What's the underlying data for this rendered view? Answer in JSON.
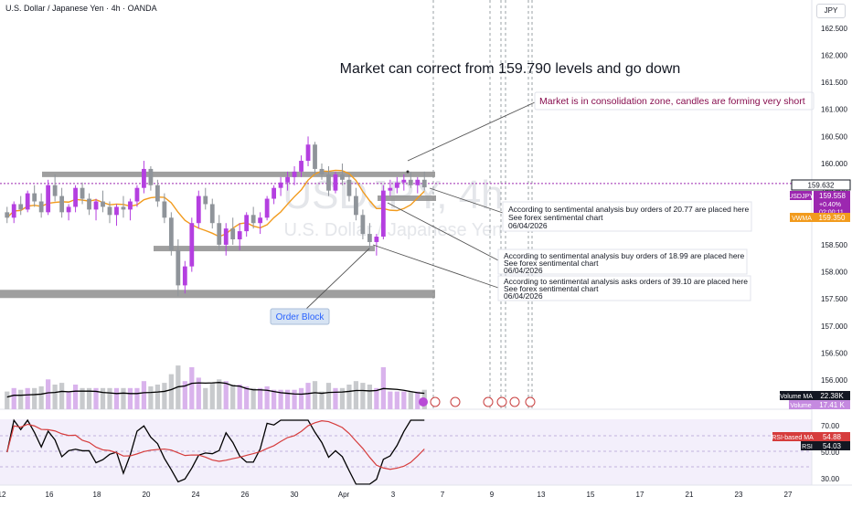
{
  "header": {
    "title": "U.S. Dollar / Japanese Yen · 4h · OANDA",
    "currency": "JPY"
  },
  "watermark": {
    "symbol": "USDJPY, 4h",
    "name": "U.S. Dollar / Japanese Yen"
  },
  "annotations": {
    "headline": "Market can correct from 159.790 levels and go down",
    "consolidation": "Market is in consolidation zone, candles are forming very short",
    "order_block": "Order Block",
    "notes": [
      {
        "line1": "According to sentimental analysis buy orders of 20.77 are placed here",
        "line2": "See forex sentimental chart",
        "line3": "06/04/2026"
      },
      {
        "line1": "According to sentimental analysis buy orders of 18.99 are placed here",
        "line2": "See forex sentimental chart",
        "line3": "06/04/2026"
      },
      {
        "line1": "According to sentimental analysis asks orders of 39.10 are placed here",
        "line2": "See forex sentimental chart",
        "line3": "06/04/2026"
      }
    ]
  },
  "price_badges": {
    "last": "159.632",
    "symbol": "USDJPY",
    "current": "159.558",
    "change": "+0.40%",
    "countdown": "02:00:11",
    "vwma_label": "VWMA",
    "vwma_value": "159.350",
    "volume_ma_label": "Volume MA",
    "volume_ma_value": "22.38K",
    "volume_label": "Volume",
    "volume_value": "17.41 K",
    "rsi_ma_label": "RSI-based MA",
    "rsi_ma_value": "54.88",
    "rsi_label": "RSI",
    "rsi_value": "54.03"
  },
  "chart_data": {
    "type": "candlestick",
    "price_axis": {
      "ticks": [
        "162.500",
        "162.000",
        "161.500",
        "161.000",
        "160.500",
        "160.000",
        "159.500",
        "159.000",
        "158.500",
        "158.000",
        "157.500",
        "157.000",
        "156.500",
        "156.000"
      ],
      "range": [
        155.85,
        162.75
      ]
    },
    "rsi_axis": {
      "ticks": [
        "70.00",
        "50.00",
        "30.00"
      ],
      "range": [
        25,
        75
      ],
      "band": [
        30,
        70
      ]
    },
    "x_axis": {
      "ticks": [
        "12",
        "16",
        "18",
        "20",
        "24",
        "26",
        "30",
        "Apr",
        "3",
        "7",
        "9",
        "13",
        "15",
        "17",
        "21",
        "23",
        "27"
      ]
    },
    "levels": {
      "resistance_zone": 159.8,
      "support_zone": 158.43,
      "order_block": 157.6,
      "last_price": 159.632
    },
    "candles": [
      [
        159.1,
        159.2,
        158.9,
        159.0
      ],
      [
        159.0,
        159.3,
        158.9,
        159.25
      ],
      [
        159.25,
        159.4,
        159.05,
        159.15
      ],
      [
        159.15,
        159.5,
        159.1,
        159.45
      ],
      [
        159.45,
        159.6,
        159.2,
        159.3
      ],
      [
        159.3,
        159.45,
        159.0,
        159.1
      ],
      [
        159.1,
        159.7,
        159.05,
        159.6
      ],
      [
        159.6,
        159.8,
        159.3,
        159.4
      ],
      [
        159.4,
        159.55,
        159.0,
        159.1
      ],
      [
        159.1,
        159.25,
        158.95,
        159.2
      ],
      [
        159.2,
        159.6,
        159.1,
        159.55
      ],
      [
        159.55,
        159.65,
        159.25,
        159.35
      ],
      [
        159.35,
        159.45,
        159.05,
        159.15
      ],
      [
        159.15,
        159.35,
        158.95,
        159.3
      ],
      [
        159.3,
        159.5,
        159.1,
        159.2
      ],
      [
        159.2,
        159.3,
        158.9,
        159.05
      ],
      [
        159.05,
        159.25,
        158.85,
        159.2
      ],
      [
        159.2,
        159.4,
        159.0,
        159.15
      ],
      [
        159.15,
        159.35,
        158.95,
        159.3
      ],
      [
        159.3,
        159.6,
        159.2,
        159.55
      ],
      [
        159.55,
        160.05,
        159.45,
        159.9
      ],
      [
        159.9,
        159.95,
        159.5,
        159.6
      ],
      [
        159.6,
        159.7,
        159.2,
        159.3
      ],
      [
        159.3,
        159.45,
        158.9,
        159.0
      ],
      [
        159.0,
        159.1,
        158.3,
        158.4
      ],
      [
        158.4,
        158.6,
        157.55,
        157.75
      ],
      [
        157.75,
        158.2,
        157.6,
        158.1
      ],
      [
        158.1,
        159.0,
        158.0,
        158.9
      ],
      [
        158.9,
        159.5,
        158.8,
        159.4
      ],
      [
        159.4,
        159.55,
        159.15,
        159.25
      ],
      [
        159.25,
        159.35,
        158.8,
        158.9
      ],
      [
        158.9,
        159.05,
        158.4,
        158.5
      ],
      [
        158.5,
        158.9,
        158.3,
        158.8
      ],
      [
        158.8,
        159.0,
        158.5,
        158.6
      ],
      [
        158.6,
        158.9,
        158.4,
        158.75
      ],
      [
        158.75,
        159.1,
        158.65,
        159.05
      ],
      [
        159.05,
        159.2,
        158.8,
        158.9
      ],
      [
        158.9,
        159.1,
        158.7,
        159.0
      ],
      [
        159.0,
        159.4,
        158.95,
        159.35
      ],
      [
        159.35,
        159.6,
        159.25,
        159.55
      ],
      [
        159.55,
        159.75,
        159.4,
        159.65
      ],
      [
        159.65,
        159.85,
        159.5,
        159.75
      ],
      [
        159.75,
        159.95,
        159.6,
        159.85
      ],
      [
        159.85,
        160.15,
        159.75,
        160.05
      ],
      [
        160.05,
        160.5,
        159.95,
        160.35
      ],
      [
        160.35,
        160.4,
        159.8,
        159.9
      ],
      [
        159.9,
        160.0,
        159.7,
        159.8
      ],
      [
        159.8,
        159.95,
        159.4,
        159.5
      ],
      [
        159.5,
        159.85,
        159.45,
        159.8
      ],
      [
        159.8,
        160.0,
        159.6,
        159.7
      ],
      [
        159.7,
        159.8,
        159.3,
        159.4
      ],
      [
        159.4,
        159.55,
        158.95,
        159.05
      ],
      [
        159.05,
        159.15,
        158.6,
        158.7
      ],
      [
        158.7,
        158.9,
        158.4,
        158.55
      ],
      [
        158.55,
        158.7,
        158.3,
        158.65
      ],
      [
        158.65,
        159.6,
        158.6,
        159.5
      ],
      [
        159.5,
        159.7,
        159.4,
        159.55
      ],
      [
        159.55,
        159.75,
        159.45,
        159.65
      ],
      [
        159.65,
        159.8,
        159.5,
        159.7
      ],
      [
        159.7,
        159.85,
        159.55,
        159.6
      ],
      [
        159.6,
        159.75,
        159.45,
        159.7
      ],
      [
        159.7,
        159.85,
        159.5,
        159.56
      ]
    ]
  }
}
